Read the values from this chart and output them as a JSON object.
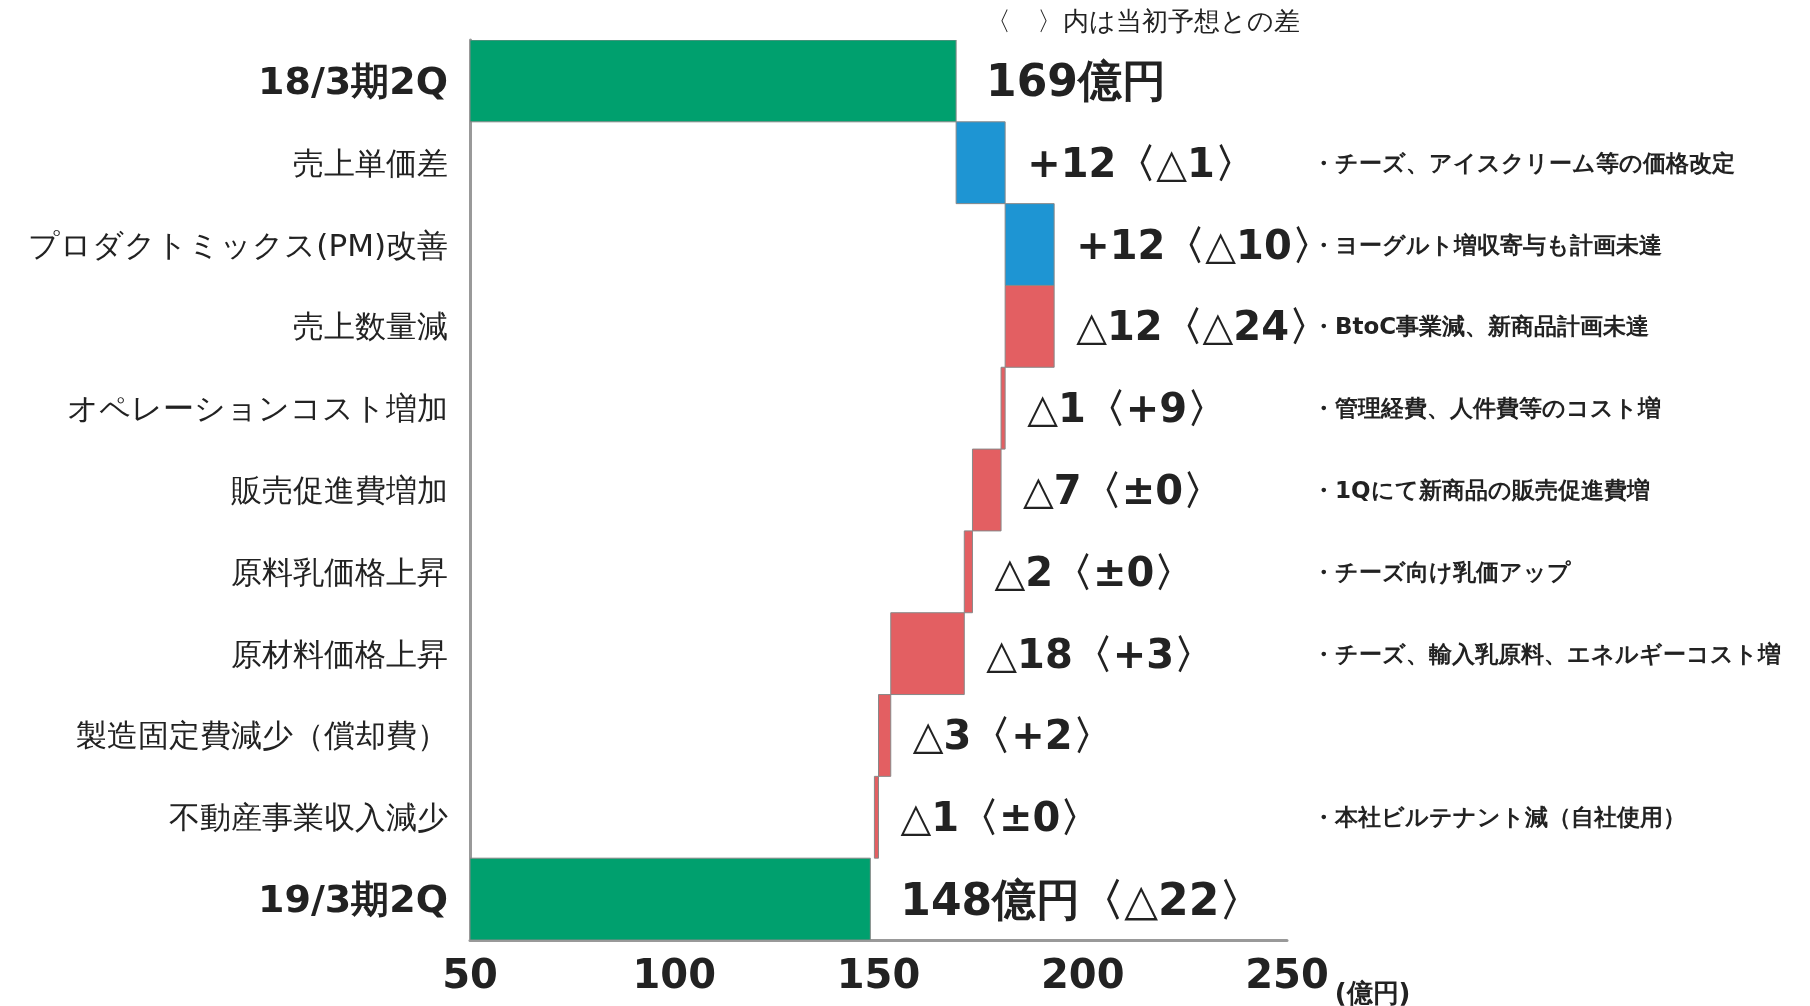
{
  "chart_data": {
    "type": "bar",
    "orientation": "horizontal",
    "xlabel": "(億円)",
    "categories": [
      "18/3期2Q",
      "売上単価差",
      "プロダクトミックス(PM)改善",
      "売上数量減",
      "オペレーションコスト増加",
      "販売促進費増加",
      "原料乳価格上昇",
      "原材料価格上昇",
      "製造固定費減少（償却費）",
      "不動産事業収入減少",
      "19/3期2Q"
    ],
    "values": [
      169,
      12,
      12,
      -12,
      -1,
      -7,
      -2,
      -18,
      -3,
      -1,
      148
    ],
    "base": [
      null,
      169,
      181,
      193,
      181,
      180,
      173,
      171,
      153,
      150,
      null
    ],
    "colors": [
      "#00a06e",
      "#1e95d3",
      "#1e95d3",
      "#e35f62",
      "#e35f62",
      "#e35f62",
      "#e35f62",
      "#e35f62",
      "#e35f62",
      "#e35f62",
      "#00a06e"
    ],
    "value_labels": [
      "169億円",
      "+12〈△1〉",
      "+12〈△10〉",
      "△12〈△24〉",
      "△1〈+9〉",
      "△7〈±0〉",
      "△2〈±0〉",
      "△18〈+3〉",
      "△3〈+2〉",
      "△1〈±0〉",
      "148億円〈△22〉"
    ],
    "xlim": [
      50,
      250
    ],
    "xticks": [
      50,
      100,
      150,
      200,
      250
    ],
    "grid": false,
    "annotations": [
      "〈　〉内は当初予想との差",
      "・チーズ、アイスクリーム等の価格改定",
      "・ヨーグルト増収寄与も計画未達",
      "・BtoC事業減、新商品計画未達",
      "・管理経費、人件費等のコスト増",
      "・1Qにて新商品の販売促進費増",
      "・チーズ向け乳価アップ",
      "・チーズ、輸入乳原料、エネルギーコスト増",
      "・本社ビルテナント減（自社使用）"
    ]
  }
}
